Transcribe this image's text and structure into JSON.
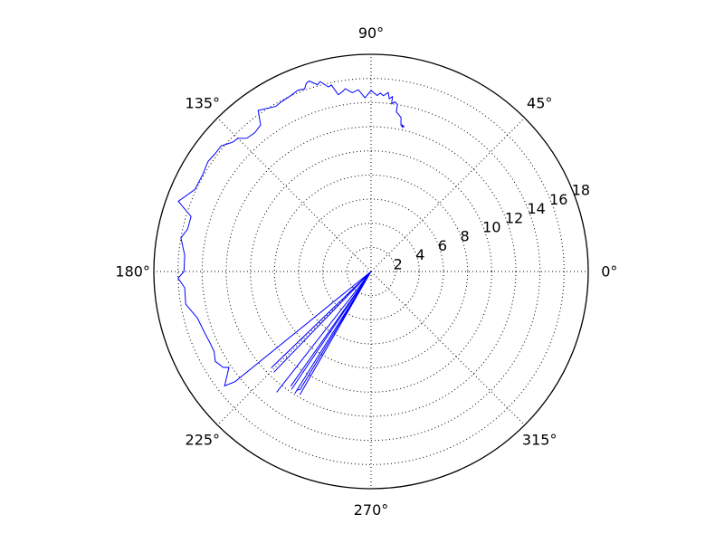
{
  "chart_data": {
    "type": "line",
    "projection": "polar",
    "title": "",
    "theta_unit": "degrees",
    "r_range": [
      0,
      18
    ],
    "r_ticks": [
      2,
      4,
      6,
      8,
      10,
      12,
      14,
      16,
      18
    ],
    "r_tick_labels": [
      "2",
      "4",
      "6",
      "8",
      "10",
      "12",
      "14",
      "16",
      "18"
    ],
    "theta_ticks": [
      0,
      45,
      90,
      135,
      180,
      225,
      270,
      315
    ],
    "theta_tick_labels": [
      "0°",
      "45°",
      "90°",
      "135°",
      "180°",
      "225°",
      "270°",
      "315°"
    ],
    "grid": true,
    "grid_style": "dotted",
    "series": [
      {
        "color": "#0000ff",
        "points": [
          {
            "theta": 77,
            "r": 12.3
          },
          {
            "theta": 78,
            "r": 12.4
          },
          {
            "theta": 77.5,
            "r": 12.2
          },
          {
            "theta": 78.5,
            "r": 12.4
          },
          {
            "theta": 79,
            "r": 13.0
          },
          {
            "theta": 80,
            "r": 13.2
          },
          {
            "theta": 81,
            "r": 13.4
          },
          {
            "theta": 81,
            "r": 14.0
          },
          {
            "theta": 82,
            "r": 14.2
          },
          {
            "theta": 83,
            "r": 14.0
          },
          {
            "theta": 83,
            "r": 14.6
          },
          {
            "theta": 84,
            "r": 14.4
          },
          {
            "theta": 84.5,
            "r": 14.9
          },
          {
            "theta": 86,
            "r": 14.6
          },
          {
            "theta": 87,
            "r": 14.8
          },
          {
            "theta": 88,
            "r": 14.6
          },
          {
            "theta": 90,
            "r": 15.0
          },
          {
            "theta": 92,
            "r": 14.4
          },
          {
            "theta": 94,
            "r": 15.1
          },
          {
            "theta": 96,
            "r": 14.9
          },
          {
            "theta": 98,
            "r": 15.3
          },
          {
            "theta": 99,
            "r": 15.1
          },
          {
            "theta": 100.5,
            "r": 14.9
          },
          {
            "theta": 102,
            "r": 15.8
          },
          {
            "theta": 103,
            "r": 15.7
          },
          {
            "theta": 105,
            "r": 16.3
          },
          {
            "theta": 106,
            "r": 16.1
          },
          {
            "theta": 108,
            "r": 16.6
          },
          {
            "theta": 109,
            "r": 16.5
          },
          {
            "theta": 110,
            "r": 16.1
          },
          {
            "theta": 112,
            "r": 16.2
          },
          {
            "theta": 115,
            "r": 16.0
          },
          {
            "theta": 118,
            "r": 15.9
          },
          {
            "theta": 120,
            "r": 15.8
          },
          {
            "theta": 125,
            "r": 16.3
          },
          {
            "theta": 127,
            "r": 15.2
          },
          {
            "theta": 130,
            "r": 15.0
          },
          {
            "theta": 133,
            "r": 15.1
          },
          {
            "theta": 135,
            "r": 15.6
          },
          {
            "theta": 137,
            "r": 15.7
          },
          {
            "theta": 140,
            "r": 16.2
          },
          {
            "theta": 143,
            "r": 16.2
          },
          {
            "theta": 146,
            "r": 16.3
          },
          {
            "theta": 150,
            "r": 16.1
          },
          {
            "theta": 155,
            "r": 16.1
          },
          {
            "theta": 160,
            "r": 17.0
          },
          {
            "theta": 163,
            "r": 15.6
          },
          {
            "theta": 167,
            "r": 15.6
          },
          {
            "theta": 170,
            "r": 16.0
          },
          {
            "theta": 175,
            "r": 15.5
          },
          {
            "theta": 180,
            "r": 15.5
          },
          {
            "theta": 182,
            "r": 16.0
          },
          {
            "theta": 185,
            "r": 15.5
          },
          {
            "theta": 190,
            "r": 15.6
          },
          {
            "theta": 195,
            "r": 14.9
          },
          {
            "theta": 200,
            "r": 14.7
          },
          {
            "theta": 204,
            "r": 14.6
          },
          {
            "theta": 207,
            "r": 14.6
          },
          {
            "theta": 210,
            "r": 14.9
          },
          {
            "theta": 213,
            "r": 14.6
          },
          {
            "theta": 214,
            "r": 14.2
          },
          {
            "theta": 218,
            "r": 15.4
          },
          {
            "theta": 219,
            "r": 14.5
          },
          {
            "theta": 225,
            "r": 0
          },
          {
            "theta": 224,
            "r": 11.5
          },
          {
            "theta": 225,
            "r": 0
          },
          {
            "theta": 226,
            "r": 11.6
          },
          {
            "theta": 225,
            "r": 0
          },
          {
            "theta": 224,
            "r": 10.9
          },
          {
            "theta": 225,
            "r": 0
          },
          {
            "theta": 232,
            "r": 12.7
          },
          {
            "theta": 225,
            "r": 0
          },
          {
            "theta": 235,
            "r": 11.6
          },
          {
            "theta": 225,
            "r": 0
          },
          {
            "theta": 236,
            "r": 11.8
          },
          {
            "theta": 225,
            "r": 0
          },
          {
            "theta": 238,
            "r": 11.9
          },
          {
            "theta": 238,
            "r": 11.6
          },
          {
            "theta": 239,
            "r": 11.4
          },
          {
            "theta": 225,
            "r": 0
          },
          {
            "theta": 240,
            "r": 11.8
          },
          {
            "theta": 240,
            "r": 10.3
          },
          {
            "theta": 225,
            "r": 0
          }
        ]
      }
    ]
  }
}
